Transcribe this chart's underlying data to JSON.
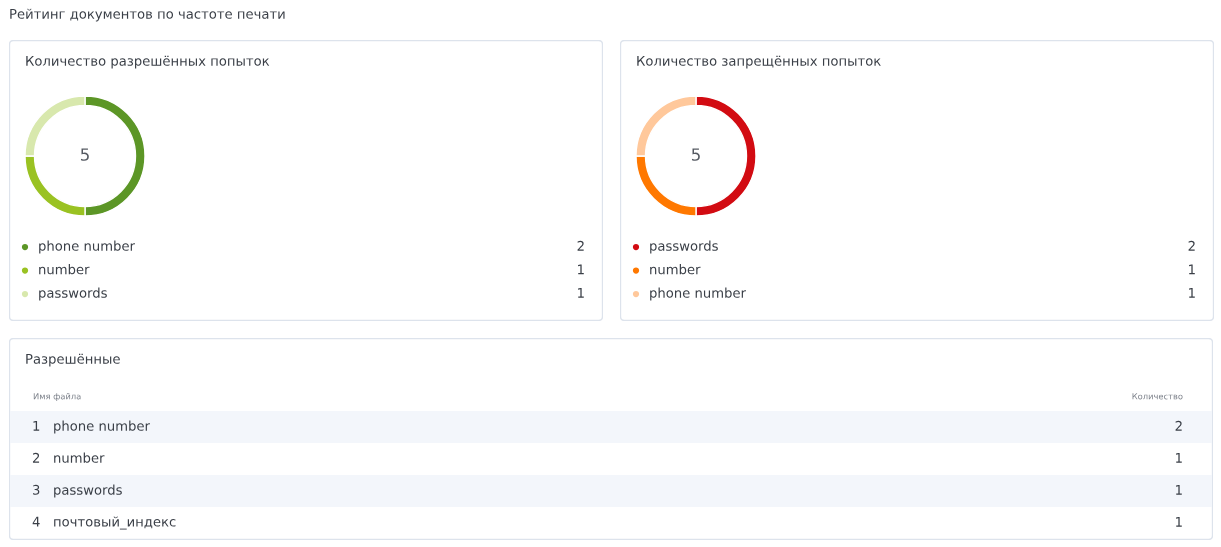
{
  "chart_data": [
    {
      "type": "other",
      "title": "Рейтинг документов по частоте печати"
    },
    {
      "type": "donut",
      "title": "Количество разрешённых попыток",
      "categories": [
        "phone number",
        "number",
        "passwords"
      ],
      "values": [
        2,
        1,
        1
      ],
      "colors": [
        "#5c9626",
        "#9ac222",
        "#d8e8ad"
      ],
      "data_labels": true,
      "legend": "bottom",
      "annotations": [
        "5"
      ]
    },
    {
      "type": "donut",
      "title": "Количество запрещённых попыток",
      "categories": [
        "passwords",
        "number",
        "phone number"
      ],
      "values": [
        2,
        1,
        1
      ],
      "colors": [
        "#d20b12",
        "#ff7800",
        "#ffc89b"
      ],
      "data_labels": true,
      "legend": "bottom",
      "annotations": [
        "5"
      ]
    },
    {
      "type": "other",
      "title": "Разрешённые",
      "xlabel": "Имя файла",
      "ylabel": "Количество",
      "categories": [
        "1   phone number",
        "2   number",
        "3   passwords",
        "4   почтовый_индекс"
      ],
      "values": [
        2,
        1,
        1,
        1
      ],
      "data_labels": true
    }
  ]
}
